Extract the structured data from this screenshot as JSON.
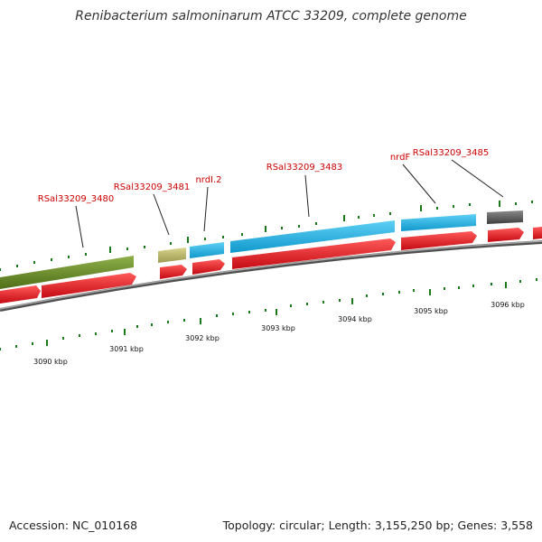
{
  "title": "Renibacterium salmoninarum ATCC 33209, complete genome",
  "footer": {
    "accession": "Accession: NC_010168",
    "summary": "Topology: circular; Length: 3,155,250 bp; Genes: 3,558"
  },
  "gene_labels": [
    "RSal33209_3480",
    "RSal33209_3481",
    "nrdI.2",
    "RSal33209_3483",
    "nrdF",
    "RSal33209_3485"
  ],
  "kbp_labels": [
    "3090 kbp",
    "3091 kbp",
    "3092 kbp",
    "3093 kbp",
    "3094 kbp",
    "3095 kbp",
    "3096 kbp"
  ],
  "colors": {
    "green_track": "#6b8e23",
    "khaki_track": "#bdb76b",
    "cyan_track": "#1ab4e8",
    "gray_track": "#555555",
    "red_cds": "#e0141e",
    "backbone": "#808080",
    "ticks": "#1a7a1a",
    "label_red": "#cc0000"
  }
}
